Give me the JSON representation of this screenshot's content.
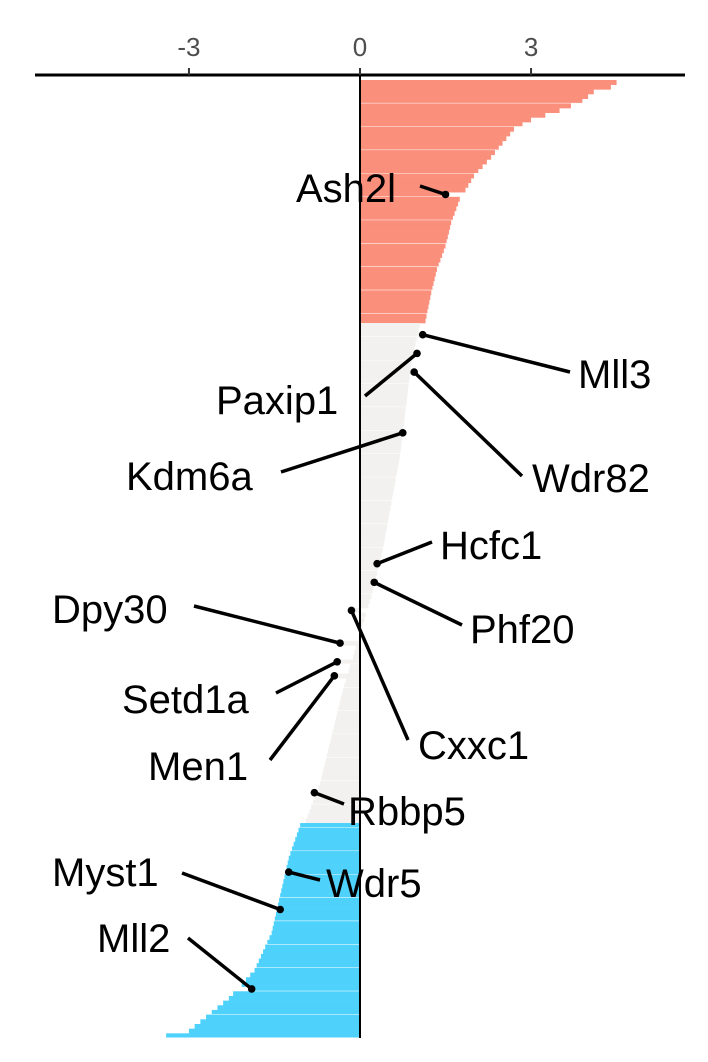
{
  "chart_data": {
    "type": "bar",
    "orientation": "horizontal",
    "title": "",
    "xlabel": "",
    "ylabel": "",
    "xlim": [
      -5.7,
      5.7
    ],
    "x_ticks": [
      -3,
      0,
      3
    ],
    "x_tick_labels": [
      "-3",
      "0",
      "3"
    ],
    "x_axis_position": "top",
    "grid": false,
    "colors": {
      "positive": "#fa8f7c",
      "neutral": "#f2f1ef",
      "negative": "#4ed1fb",
      "separator": "#ffffff",
      "axis": "#000000",
      "tick_text": "#4d4d4d",
      "label": "#000000"
    },
    "series_summary": {
      "n_bars": 205,
      "sorted": "descending",
      "positive_count": 52,
      "neutral_count": 107,
      "negative_count": 46,
      "control_points": [
        [
          0,
          4.5
        ],
        [
          1,
          4.4
        ],
        [
          2,
          4.1
        ],
        [
          4,
          3.9
        ],
        [
          6,
          3.5
        ],
        [
          8,
          3.0
        ],
        [
          10,
          2.7
        ],
        [
          13,
          2.5
        ],
        [
          16,
          2.3
        ],
        [
          20,
          2.0
        ],
        [
          25,
          1.75
        ],
        [
          30,
          1.6
        ],
        [
          35,
          1.5
        ],
        [
          40,
          1.35
        ],
        [
          45,
          1.25
        ],
        [
          51,
          1.15
        ],
        [
          52,
          1.05
        ],
        [
          60,
          0.9
        ],
        [
          70,
          0.8
        ],
        [
          80,
          0.7
        ],
        [
          90,
          0.55
        ],
        [
          100,
          0.4
        ],
        [
          110,
          0.2
        ],
        [
          120,
          -0.05
        ],
        [
          130,
          -0.3
        ],
        [
          140,
          -0.5
        ],
        [
          150,
          -0.7
        ],
        [
          158,
          -0.95
        ],
        [
          159,
          -1.05
        ],
        [
          166,
          -1.25
        ],
        [
          174,
          -1.4
        ],
        [
          182,
          -1.55
        ],
        [
          190,
          -1.85
        ],
        [
          196,
          -2.3
        ],
        [
          200,
          -2.7
        ],
        [
          203,
          -3.0
        ],
        [
          204,
          -3.4
        ]
      ]
    },
    "labeled_genes": [
      {
        "name": "Ash2l",
        "rank": 24,
        "value": 1.5
      },
      {
        "name": "Mll3",
        "rank": 54,
        "value": 1.1
      },
      {
        "name": "Paxip1",
        "rank": 58,
        "value": 1.0
      },
      {
        "name": "Wdr82",
        "rank": 62,
        "value": 0.95
      },
      {
        "name": "Kdm6a",
        "rank": 75,
        "value": 0.75
      },
      {
        "name": "Hcfc1",
        "rank": 103,
        "value": 0.3
      },
      {
        "name": "Phf20",
        "rank": 107,
        "value": 0.25
      },
      {
        "name": "Cxxc1",
        "rank": 113,
        "value": -0.15
      },
      {
        "name": "Dpy30",
        "rank": 120,
        "value": -0.35
      },
      {
        "name": "Setd1a",
        "rank": 124,
        "value": -0.4
      },
      {
        "name": "Men1",
        "rank": 127,
        "value": -0.45
      },
      {
        "name": "Rbbp5",
        "rank": 152,
        "value": -0.8
      },
      {
        "name": "Wdr5",
        "rank": 169,
        "value": -1.25
      },
      {
        "name": "Myst1",
        "rank": 177,
        "value": -1.4
      },
      {
        "name": "Mll2",
        "rank": 194,
        "value": -1.9
      }
    ]
  }
}
